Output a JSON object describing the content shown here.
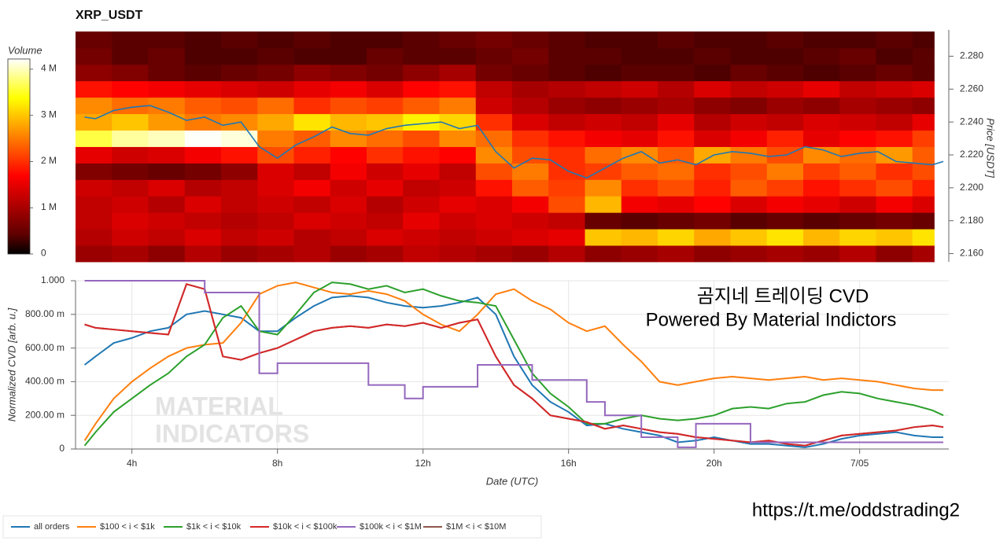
{
  "link": "https://t.me/oddstrading2",
  "chart_data": [
    {
      "type": "heatmap",
      "title": "XRP_USDT",
      "ylabel": "Price [USDT]",
      "colormap": "hot",
      "xlim": [
        2.45,
        26.45
      ],
      "ylim": [
        2.155,
        2.296
      ],
      "yticks": [
        {
          "value": 2.16,
          "label": "2.160"
        },
        {
          "value": 2.18,
          "label": "2.180"
        },
        {
          "value": 2.2,
          "label": "2.200"
        },
        {
          "value": 2.22,
          "label": "2.220"
        },
        {
          "value": 2.24,
          "label": "2.240"
        },
        {
          "value": 2.26,
          "label": "2.260"
        },
        {
          "value": 2.28,
          "label": "2.280"
        }
      ],
      "xbins": [
        2.45,
        3.45,
        4.45,
        5.45,
        6.45,
        7.45,
        8.45,
        9.45,
        10.45,
        11.45,
        12.45,
        13.45,
        14.45,
        15.45,
        16.45,
        17.45,
        18.45,
        19.45,
        20.45,
        21.45,
        22.45,
        23.45,
        24.45,
        25.45,
        26.05
      ],
      "ybins": [
        2.155,
        2.165,
        2.175,
        2.185,
        2.195,
        2.205,
        2.215,
        2.225,
        2.235,
        2.245,
        2.255,
        2.265,
        2.275,
        2.285,
        2.295
      ],
      "values": [
        [
          900000.0,
          1000000.0,
          800000.0,
          1100000.0,
          900000.0,
          1000000.0,
          1100000.0,
          900000.0,
          1000000.0,
          1200000.0,
          1100000.0,
          1000000.0,
          900000.0,
          1100000.0,
          800000.0,
          900000.0,
          1000000.0,
          800000.0,
          900000.0,
          1000000.0,
          900000.0,
          1100000.0,
          800000.0,
          1000000.0
        ],
        [
          1100000.0,
          1300000.0,
          1200000.0,
          1400000.0,
          1200000.0,
          1300000.0,
          1100000.0,
          1200000.0,
          1400000.0,
          1300000.0,
          1200000.0,
          1300000.0,
          1400000.0,
          1500000.0,
          3000000.0,
          2900000.0,
          3100000.0,
          2800000.0,
          3000000.0,
          3200000.0,
          2900000.0,
          3100000.0,
          3000000.0,
          3200000.0
        ],
        [
          1200000.0,
          1400000.0,
          1300000.0,
          1200000.0,
          1100000.0,
          1200000.0,
          1400000.0,
          1300000.0,
          1200000.0,
          1500000.0,
          1300000.0,
          1400000.0,
          1300000.0,
          1200000.0,
          500000.0,
          400000.0,
          500000.0,
          600000.0,
          400000.0,
          500000.0,
          400000.0,
          500000.0,
          600000.0,
          500000.0
        ],
        [
          1200000.0,
          1300000.0,
          1100000.0,
          1400000.0,
          1200000.0,
          1300000.0,
          1200000.0,
          1400000.0,
          1100000.0,
          1300000.0,
          1500000.0,
          1400000.0,
          1600000.0,
          2200000.0,
          2900000.0,
          1600000.0,
          1500000.0,
          1700000.0,
          1400000.0,
          1600000.0,
          1500000.0,
          1300000.0,
          1600000.0,
          1400000.0
        ],
        [
          1300000.0,
          1200000.0,
          1400000.0,
          1100000.0,
          1200000.0,
          1400000.0,
          1600000.0,
          1300000.0,
          1500000.0,
          1200000.0,
          1300000.0,
          1800000.0,
          2300000.0,
          2100000.0,
          2600000.0,
          2000000.0,
          2200000.0,
          1900000.0,
          2300000.0,
          2100000.0,
          1800000.0,
          2000000.0,
          2200000.0,
          1900000.0
        ],
        [
          700000.0,
          600000.0,
          500000.0,
          600000.0,
          800000.0,
          1400000.0,
          1200000.0,
          1600000.0,
          1300000.0,
          1500000.0,
          1200000.0,
          2200000.0,
          2500000.0,
          2000000.0,
          2100000.0,
          2300000.0,
          2400000.0,
          2000000.0,
          2200000.0,
          2500000.0,
          2100000.0,
          2300000.0,
          2000000.0,
          2200000.0
        ],
        [
          1500000.0,
          1300000.0,
          1400000.0,
          1600000.0,
          1800000.0,
          2200000.0,
          1900000.0,
          1700000.0,
          2000000.0,
          1800000.0,
          1700000.0,
          2600000.0,
          2200000.0,
          2000000.0,
          2400000.0,
          2600000.0,
          2300000.0,
          2800000.0,
          2500000.0,
          2200000.0,
          2600000.0,
          2400000.0,
          2700000.0,
          2300000.0
        ],
        [
          3600000.0,
          3900000.0,
          4000000.0,
          4200000.0,
          4100000.0,
          2500000.0,
          2300000.0,
          2600000.0,
          2400000.0,
          2200000.0,
          2600000.0,
          2400000.0,
          2000000.0,
          1800000.0,
          1600000.0,
          1500000.0,
          1800000.0,
          1400000.0,
          1600000.0,
          1900000.0,
          1500000.0,
          1700000.0,
          1800000.0,
          2100000.0
        ],
        [
          2800000.0,
          3000000.0,
          2700000.0,
          2500000.0,
          2600000.0,
          2800000.0,
          3200000.0,
          2900000.0,
          3000000.0,
          3300000.0,
          3100000.0,
          2000000.0,
          1400000.0,
          1200000.0,
          1300000.0,
          1200000.0,
          1500000.0,
          1100000.0,
          1300000.0,
          1200000.0,
          1400000.0,
          1300000.0,
          1200000.0,
          1500000.0
        ],
        [
          2600000.0,
          2400000.0,
          2500000.0,
          2300000.0,
          2200000.0,
          2400000.0,
          2000000.0,
          2200000.0,
          2100000.0,
          2300000.0,
          2500000.0,
          1300000.0,
          1100000.0,
          900000.0,
          800000.0,
          900000.0,
          1000000.0,
          800000.0,
          700000.0,
          900000.0,
          800000.0,
          1000000.0,
          900000.0,
          800000.0
        ],
        [
          1800000.0,
          1700000.0,
          1600000.0,
          1500000.0,
          1400000.0,
          1300000.0,
          1500000.0,
          1600000.0,
          1400000.0,
          1700000.0,
          1800000.0,
          1200000.0,
          1000000.0,
          1100000.0,
          1200000.0,
          1300000.0,
          1100000.0,
          1400000.0,
          1200000.0,
          1300000.0,
          1500000.0,
          1200000.0,
          1300000.0,
          1400000.0
        ],
        [
          800000.0,
          700000.0,
          500000.0,
          400000.0,
          500000.0,
          600000.0,
          800000.0,
          700000.0,
          600000.0,
          800000.0,
          1000000.0,
          600000.0,
          500000.0,
          400000.0,
          300000.0,
          400000.0,
          400000.0,
          300000.0,
          500000.0,
          400000.0,
          300000.0,
          400000.0,
          500000.0,
          400000.0
        ],
        [
          600000.0,
          400000.0,
          500000.0,
          300000.0,
          300000.0,
          400000.0,
          300000.0,
          300000.0,
          500000.0,
          400000.0,
          400000.0,
          500000.0,
          600000.0,
          400000.0,
          400000.0,
          300000.0,
          300000.0,
          400000.0,
          300000.0,
          300000.0,
          400000.0,
          500000.0,
          300000.0,
          400000.0
        ],
        [
          500000.0,
          400000.0,
          400000.0,
          300000.0,
          400000.0,
          300000.0,
          400000.0,
          300000.0,
          300000.0,
          400000.0,
          500000.0,
          600000.0,
          500000.0,
          400000.0,
          300000.0,
          300000.0,
          400000.0,
          300000.0,
          300000.0,
          400000.0,
          300000.0,
          300000.0,
          400000.0,
          300000.0
        ]
      ],
      "colorbar": {
        "label": "Volume",
        "lim": [
          0,
          4220000.0
        ],
        "ticks": [
          0,
          {
            "value": 1000000,
            "label": "1 M"
          },
          {
            "value": 2000000,
            "label": "2 M"
          },
          {
            "value": 3000000,
            "label": "3 M"
          },
          {
            "value": 4000000,
            "label": "4 M"
          }
        ]
      },
      "x": [
        2.7,
        3,
        3.5,
        4,
        4.5,
        5,
        5.5,
        6,
        6.5,
        7,
        7.5,
        8,
        8.5,
        9,
        9.5,
        10,
        10.5,
        11,
        11.5,
        12,
        12.5,
        13,
        13.5,
        14,
        14.5,
        15,
        15.5,
        16,
        16.5,
        17,
        17.5,
        18,
        18.5,
        19,
        19.5,
        20,
        20.5,
        21,
        21.5,
        22,
        22.5,
        23,
        23.5,
        24,
        24.5,
        25,
        25.5,
        26,
        26.3
      ],
      "line": {
        "color": "#1f77b4",
        "values": [
          2.243,
          2.242,
          2.247,
          2.249,
          2.25,
          2.246,
          2.241,
          2.243,
          2.238,
          2.24,
          2.225,
          2.218,
          2.226,
          2.231,
          2.237,
          2.233,
          2.232,
          2.236,
          2.238,
          2.239,
          2.24,
          2.236,
          2.238,
          2.222,
          2.212,
          2.218,
          2.217,
          2.21,
          2.206,
          2.212,
          2.218,
          2.222,
          2.215,
          2.217,
          2.214,
          2.22,
          2.222,
          2.221,
          2.219,
          2.22,
          2.225,
          2.223,
          2.219,
          2.221,
          2.222,
          2.216,
          2.215,
          2.214,
          2.216
        ]
      }
    },
    {
      "type": "line",
      "xlabel": "Date (UTC)",
      "ylabel": "Normalized CVD [arb. u.]",
      "annotations": [
        "곰지네 트레이딩 CVD",
        "Powered By Material Indictors"
      ],
      "watermark": [
        "MATERIAL",
        "INDICATORS"
      ],
      "grid": true,
      "legend": "bottom-left",
      "xlim": [
        2.45,
        26.45
      ],
      "ylim": [
        0,
        1
      ],
      "xticks": [
        {
          "value": 4,
          "label": "4h"
        },
        {
          "value": 8,
          "label": "8h"
        },
        {
          "value": 12,
          "label": "12h"
        },
        {
          "value": 16,
          "label": "16h"
        },
        {
          "value": 20,
          "label": "20h"
        },
        {
          "value": 24,
          "label": "7/05"
        }
      ],
      "yticks": [
        0,
        {
          "value": 0.2,
          "label": "200.00 m"
        },
        {
          "value": 0.4,
          "label": "400.00 m"
        },
        {
          "value": 0.6,
          "label": "600.00 m"
        },
        {
          "value": 0.8,
          "label": "800.00 m"
        },
        {
          "value": 1,
          "label": "1.000"
        }
      ],
      "x": [
        2.7,
        3,
        3.5,
        4,
        4.5,
        5,
        5.5,
        6,
        6.5,
        7,
        7.5,
        8,
        8.5,
        9,
        9.5,
        10,
        10.5,
        11,
        11.5,
        12,
        12.5,
        13,
        13.5,
        14,
        14.5,
        15,
        15.5,
        16,
        16.5,
        17,
        17.5,
        18,
        18.5,
        19,
        19.5,
        20,
        20.5,
        21,
        21.5,
        22,
        22.5,
        23,
        23.5,
        24,
        24.5,
        25,
        25.5,
        26,
        26.3
      ],
      "series": [
        {
          "name": "$1M < i < $10M",
          "color": "#8c564b",
          "legend_order": 5,
          "values": [
            0.74,
            0.72,
            0.71,
            0.7,
            0.69,
            0.68,
            0.98,
            0.95,
            0.55,
            0.53,
            0.57,
            0.6,
            0.65,
            0.7,
            0.72,
            0.73,
            0.72,
            0.74,
            0.73,
            0.75,
            0.72,
            0.75,
            0.77,
            0.55,
            0.38,
            0.3,
            0.2,
            0.18,
            0.16,
            0.12,
            0.14,
            0.12,
            0.1,
            0.09,
            0.07,
            0.06,
            0.05,
            0.04,
            0.05,
            0.03,
            0.02,
            0.05,
            0.08,
            0.09,
            0.1,
            0.11,
            0.13,
            0.14,
            0.13
          ]
        },
        {
          "name": "all orders",
          "color": "#1f77b4",
          "legend_order": 0,
          "values": [
            0.5,
            0.55,
            0.63,
            0.66,
            0.7,
            0.72,
            0.8,
            0.82,
            0.8,
            0.78,
            0.7,
            0.7,
            0.78,
            0.85,
            0.9,
            0.91,
            0.9,
            0.87,
            0.85,
            0.84,
            0.85,
            0.87,
            0.9,
            0.8,
            0.55,
            0.38,
            0.28,
            0.22,
            0.14,
            0.15,
            0.12,
            0.1,
            0.08,
            0.04,
            0.05,
            0.07,
            0.05,
            0.03,
            0.03,
            0.02,
            0.01,
            0.03,
            0.06,
            0.08,
            0.09,
            0.1,
            0.08,
            0.07,
            0.07
          ]
        },
        {
          "name": "$100 < i < $1k",
          "color": "#ff7f0e",
          "legend_order": 1,
          "values": [
            0.05,
            0.15,
            0.3,
            0.4,
            0.48,
            0.55,
            0.6,
            0.62,
            0.63,
            0.75,
            0.92,
            0.97,
            0.99,
            0.96,
            0.93,
            0.92,
            0.94,
            0.92,
            0.88,
            0.8,
            0.74,
            0.7,
            0.8,
            0.92,
            0.95,
            0.88,
            0.83,
            0.75,
            0.7,
            0.73,
            0.62,
            0.52,
            0.4,
            0.38,
            0.4,
            0.42,
            0.43,
            0.42,
            0.41,
            0.42,
            0.43,
            0.41,
            0.42,
            0.41,
            0.4,
            0.38,
            0.36,
            0.35,
            0.35
          ]
        },
        {
          "name": "$1k < i < $10k",
          "color": "#2ca02c",
          "legend_order": 2,
          "values": [
            0.02,
            0.1,
            0.22,
            0.3,
            0.38,
            0.45,
            0.55,
            0.62,
            0.78,
            0.85,
            0.7,
            0.68,
            0.8,
            0.93,
            0.99,
            0.98,
            0.95,
            0.97,
            0.93,
            0.95,
            0.91,
            0.88,
            0.87,
            0.85,
            0.65,
            0.45,
            0.33,
            0.25,
            0.15,
            0.15,
            0.18,
            0.2,
            0.18,
            0.17,
            0.18,
            0.2,
            0.24,
            0.25,
            0.24,
            0.27,
            0.28,
            0.32,
            0.34,
            0.33,
            0.3,
            0.28,
            0.26,
            0.23,
            0.2
          ]
        },
        {
          "name": "$10k < i < $100k",
          "color": "#d62728",
          "legend_order": 3,
          "values": [
            0.74,
            0.72,
            0.71,
            0.7,
            0.69,
            0.68,
            0.98,
            0.95,
            0.55,
            0.53,
            0.57,
            0.6,
            0.65,
            0.7,
            0.72,
            0.73,
            0.72,
            0.74,
            0.73,
            0.75,
            0.72,
            0.75,
            0.77,
            0.55,
            0.38,
            0.3,
            0.2,
            0.18,
            0.16,
            0.12,
            0.14,
            0.12,
            0.1,
            0.09,
            0.07,
            0.06,
            0.05,
            0.04,
            0.05,
            0.03,
            0.02,
            0.05,
            0.08,
            0.09,
            0.1,
            0.11,
            0.13,
            0.14,
            0.13
          ]
        },
        {
          "name": "$100k < i < $1M",
          "color": "#9467bd",
          "legend_order": 4,
          "step": true,
          "values": [
            1,
            1,
            1,
            1,
            1,
            1,
            1,
            0.93,
            0.93,
            0.93,
            0.45,
            0.51,
            0.51,
            0.51,
            0.51,
            0.51,
            0.38,
            0.38,
            0.3,
            0.37,
            0.37,
            0.37,
            0.5,
            0.5,
            0.5,
            0.41,
            0.41,
            0.41,
            0.28,
            0.2,
            0.2,
            0.07,
            0.07,
            0.01,
            0.15,
            0.15,
            0.15,
            0.04,
            0.04,
            0.04,
            0.04,
            0.04,
            0.04,
            0.04,
            0.04,
            0.04,
            0.04,
            0.04,
            0.04
          ]
        }
      ]
    }
  ]
}
